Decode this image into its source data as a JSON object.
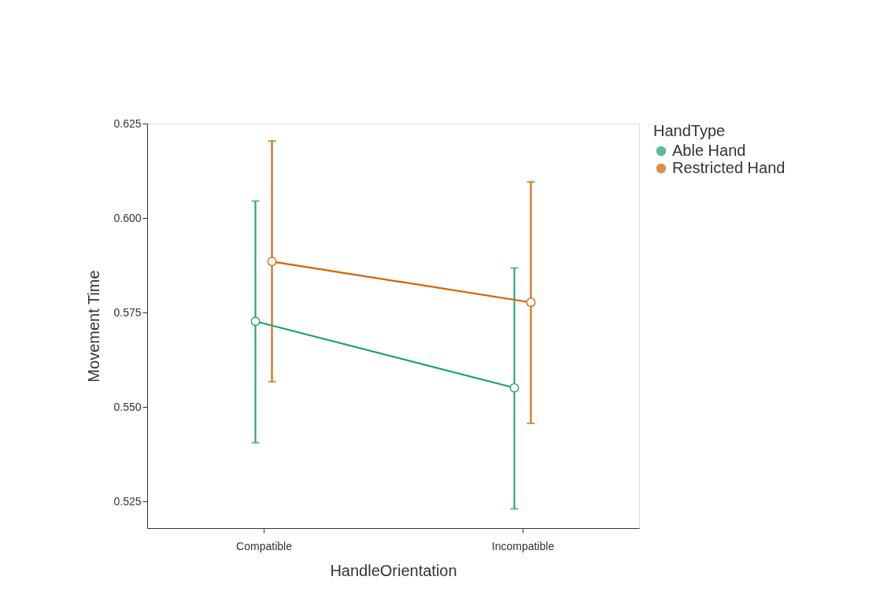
{
  "chart_data": {
    "type": "line",
    "xlabel": "HandleOrientation",
    "ylabel": "Movement Time",
    "legend_title": "HandType",
    "categories": [
      "Compatible",
      "Incompatible"
    ],
    "series": [
      {
        "name": "Able Hand",
        "color": "#1b9e77",
        "values": [
          0.5727,
          0.5551
        ],
        "errors": [
          [
            0.5406,
            0.6045
          ],
          [
            0.5231,
            0.5868
          ]
        ]
      },
      {
        "name": "Restricted Hand",
        "color": "#d95f02",
        "values": [
          0.5885,
          0.5777
        ],
        "errors": [
          [
            0.5567,
            0.6204
          ],
          [
            0.5457,
            0.6096
          ]
        ]
      }
    ],
    "ylim": [
      0.518,
      0.625
    ],
    "yticks": [
      0.525,
      {
        "value": 0.55,
        "label": "0.550"
      },
      0.575,
      {
        "value": 0.6,
        "label": "0.600"
      },
      0.625
    ],
    "grid": false,
    "legend": "right",
    "marker": "circle",
    "line_style": "solid"
  }
}
